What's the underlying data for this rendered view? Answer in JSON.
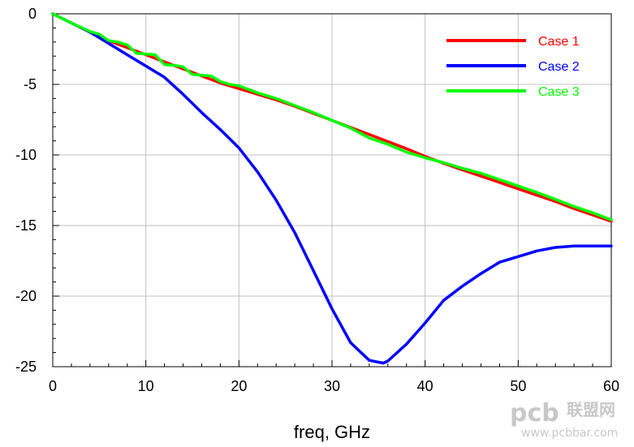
{
  "chart_data": {
    "type": "line",
    "xlabel": "freq, GHz",
    "ylabel": "",
    "xlim": [
      0,
      60
    ],
    "ylim": [
      -25,
      0
    ],
    "xticks": [
      0,
      10,
      20,
      30,
      40,
      50,
      60
    ],
    "yticks": [
      0,
      -5,
      -10,
      -15,
      -20,
      -25
    ],
    "grid": true,
    "legend_position": "top-right",
    "series": [
      {
        "name": "Case 1",
        "color": "#ff0000",
        "x": [
          0,
          2,
          4,
          6,
          8,
          10,
          12,
          14,
          16,
          18,
          20,
          22,
          24,
          26,
          28,
          30,
          32,
          34,
          36,
          38,
          40,
          42,
          44,
          46,
          48,
          50,
          52,
          54,
          56,
          58,
          60
        ],
        "y": [
          0,
          -0.65,
          -1.3,
          -1.9,
          -2.4,
          -2.9,
          -3.4,
          -3.9,
          -4.4,
          -4.9,
          -5.3,
          -5.7,
          -6.1,
          -6.55,
          -7.05,
          -7.55,
          -8.05,
          -8.55,
          -9.05,
          -9.55,
          -10.1,
          -10.6,
          -11.05,
          -11.5,
          -11.95,
          -12.4,
          -12.85,
          -13.3,
          -13.8,
          -14.25,
          -14.7
        ]
      },
      {
        "name": "Case 2",
        "color": "#0000ff",
        "x": [
          0,
          2,
          4,
          6,
          8,
          10,
          12,
          14,
          16,
          18,
          20,
          22,
          24,
          26,
          28,
          30,
          32,
          34,
          35.5,
          36,
          38,
          40,
          42,
          44,
          46,
          48,
          50,
          52,
          54,
          56,
          58,
          60
        ],
        "y": [
          0,
          -0.65,
          -1.3,
          -2.1,
          -2.9,
          -3.7,
          -4.5,
          -5.7,
          -7.0,
          -8.2,
          -9.5,
          -11.2,
          -13.2,
          -15.5,
          -18.2,
          -20.9,
          -23.3,
          -24.55,
          -24.75,
          -24.6,
          -23.4,
          -21.9,
          -20.3,
          -19.3,
          -18.4,
          -17.6,
          -17.2,
          -16.8,
          -16.55,
          -16.45,
          -16.45,
          -16.45
        ]
      },
      {
        "name": "Case 3",
        "color": "#00ff00",
        "x": [
          0,
          2,
          4,
          5,
          6,
          7,
          8,
          9,
          10,
          11,
          12,
          13,
          14,
          15,
          16,
          17,
          18,
          19,
          20,
          22,
          24,
          26,
          28,
          30,
          32,
          34,
          36,
          38,
          40,
          42,
          44,
          46,
          48,
          50,
          52,
          54,
          56,
          58,
          60
        ],
        "y": [
          0,
          -0.65,
          -1.25,
          -1.45,
          -1.9,
          -2.0,
          -2.2,
          -2.8,
          -2.85,
          -2.9,
          -3.6,
          -3.65,
          -3.75,
          -4.3,
          -4.35,
          -4.4,
          -4.8,
          -5.0,
          -5.1,
          -5.6,
          -6.0,
          -6.5,
          -7.0,
          -7.55,
          -8.1,
          -8.8,
          -9.25,
          -9.8,
          -10.2,
          -10.55,
          -10.95,
          -11.3,
          -11.75,
          -12.2,
          -12.65,
          -13.15,
          -13.65,
          -14.1,
          -14.6
        ]
      }
    ]
  },
  "watermark": {
    "logo_text": "pcb",
    "chinese_text": "联盟网",
    "url": "www.pcbbar.com"
  }
}
